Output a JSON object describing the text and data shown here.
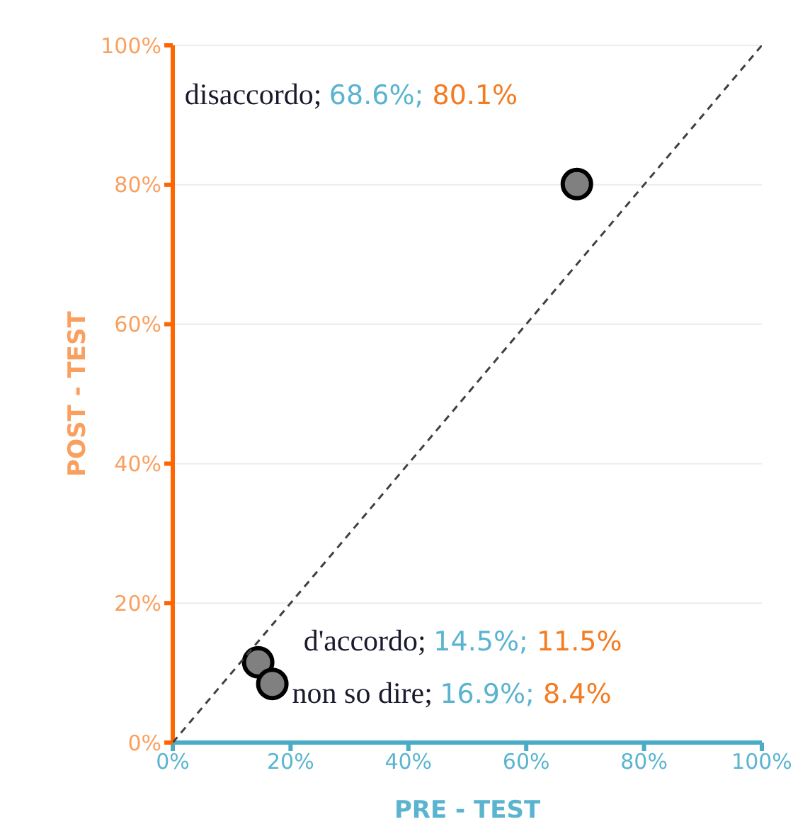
{
  "chart_data": {
    "type": "scatter",
    "xlabel": "PRE - TEST",
    "ylabel": "POST - TEST",
    "xlim": [
      0,
      100
    ],
    "ylim": [
      0,
      100
    ],
    "xticks": [
      {
        "value": 0,
        "label": "0%"
      },
      {
        "value": 20,
        "label": "20%"
      },
      {
        "value": 40,
        "label": "40%"
      },
      {
        "value": 60,
        "label": "60%"
      },
      {
        "value": 80,
        "label": "80%"
      },
      {
        "value": 100,
        "label": "100%"
      }
    ],
    "yticks": [
      {
        "value": 0,
        "label": "0%"
      },
      {
        "value": 20,
        "label": "20%"
      },
      {
        "value": 40,
        "label": "40%"
      },
      {
        "value": 60,
        "label": "60%"
      },
      {
        "value": 80,
        "label": "80%"
      },
      {
        "value": 100,
        "label": "100%"
      }
    ],
    "grid": "y",
    "marker": "circle",
    "series": [
      {
        "color": "#808080",
        "x": [
          68.6,
          14.5,
          16.9
        ],
        "values": [
          80.1,
          11.5,
          8.4
        ],
        "value_labels": [
          "disaccordo; 68.6%; 80.1%",
          "d'accordo; 14.5%; 11.5%",
          "non so dire; 16.9%; 8.4%"
        ]
      },
      {
        "type": "line",
        "color": "#404040",
        "x": [
          0,
          100
        ],
        "values": [
          0,
          100
        ],
        "line_style": "dashed",
        "marker": "none"
      }
    ]
  }
}
